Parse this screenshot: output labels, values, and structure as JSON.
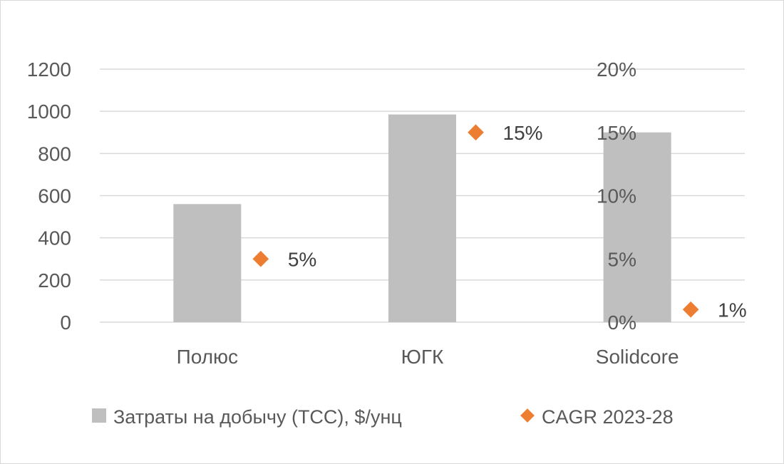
{
  "chart_data": {
    "type": "bar",
    "categories": [
      "Полюс",
      "ЮГК",
      "Solidcore"
    ],
    "series": [
      {
        "name": "Затраты на добычу (ТСС), $/унц",
        "kind": "bar",
        "axis": "left",
        "values": [
          560,
          985,
          900
        ],
        "color": "#bfbfbf"
      },
      {
        "name": "CAGR 2023-28",
        "kind": "scatter",
        "axis": "right",
        "values": [
          5,
          15,
          1
        ],
        "labels": [
          "5%",
          "15%",
          "1%"
        ],
        "color": "#ed7d31"
      }
    ],
    "y_left": {
      "ylim": [
        0,
        1200
      ],
      "ticks": [
        "0",
        "200",
        "400",
        "600",
        "800",
        "1000",
        "1200"
      ]
    },
    "y_right": {
      "ylim": [
        0,
        20
      ],
      "ticks": [
        "0%",
        "5%",
        "10%",
        "15%",
        "20%"
      ]
    },
    "grid": true,
    "legend": "bottom"
  }
}
